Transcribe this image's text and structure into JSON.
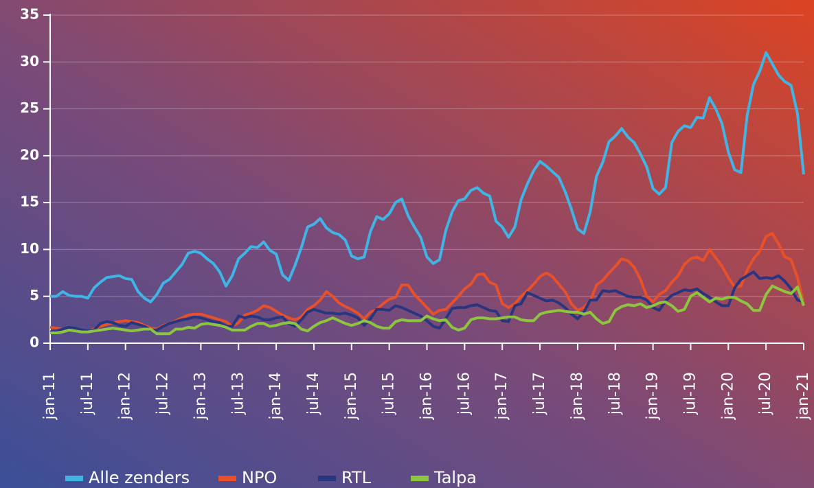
{
  "chart_data": {
    "type": "line",
    "categories": [
      "jan-11",
      null,
      null,
      null,
      null,
      null,
      "jul-11",
      null,
      null,
      null,
      null,
      null,
      "jan-12",
      null,
      null,
      null,
      null,
      null,
      "jul-12",
      null,
      null,
      null,
      null,
      null,
      "jan-13",
      null,
      null,
      null,
      null,
      null,
      "jul-13",
      null,
      null,
      null,
      null,
      null,
      "jan-14",
      null,
      null,
      null,
      null,
      null,
      "jul-14",
      null,
      null,
      null,
      null,
      null,
      "jan-15",
      null,
      null,
      null,
      null,
      null,
      "jul-15",
      null,
      null,
      null,
      null,
      null,
      "jan-16",
      null,
      null,
      null,
      null,
      null,
      "jul-16",
      null,
      null,
      null,
      null,
      null,
      "jan-17",
      null,
      null,
      null,
      null,
      null,
      "jul-17",
      null,
      null,
      null,
      null,
      null,
      "jan-18",
      null,
      null,
      null,
      null,
      null,
      "jul-18",
      null,
      null,
      null,
      null,
      null,
      "jan-19",
      null,
      null,
      null,
      null,
      null,
      "jul-19",
      null,
      null,
      null,
      null,
      null,
      "jan-20",
      null,
      null,
      null,
      null,
      null,
      "jul-20",
      null,
      null,
      null,
      null,
      null,
      "jan-21"
    ],
    "series": [
      {
        "name": "Alle zenders",
        "color": "#3fb4e5",
        "values": [
          5,
          5,
          5.5,
          5.1,
          5,
          5,
          4.8,
          5.9,
          6.5,
          7,
          7.1,
          7.2,
          6.9,
          6.8,
          5.5,
          4.8,
          4.4,
          5.2,
          6.4,
          6.8,
          7.6,
          8.4,
          9.6,
          9.8,
          9.6,
          9,
          8.5,
          7.6,
          6.1,
          7.2,
          9,
          9.6,
          10.3,
          10.2,
          10.8,
          9.9,
          9.5,
          7.3,
          6.7,
          8.3,
          10.2,
          12.4,
          12.7,
          13.3,
          12.3,
          11.8,
          11.6,
          11,
          9.3,
          9,
          9.2,
          11.9,
          13.5,
          13.2,
          13.8,
          15,
          15.4,
          13.6,
          12.4,
          11.3,
          9.2,
          8.5,
          8.9,
          12,
          14,
          15.2,
          15.4,
          16.3,
          16.6,
          16,
          15.7,
          13,
          12.4,
          11.3,
          12.4,
          15.3,
          17,
          18.4,
          19.4,
          18.9,
          18.3,
          17.7,
          16.2,
          14.3,
          12.2,
          11.7,
          14,
          17.8,
          19.3,
          21.5,
          22.1,
          22.9,
          22,
          21.4,
          20.2,
          18.8,
          16.5,
          15.9,
          16.6,
          21.4,
          22.6,
          23.2,
          23,
          24.1,
          24,
          26.2,
          25,
          23.4,
          20.4,
          18.5,
          18.2,
          24.3,
          27.6,
          29,
          31,
          29.8,
          28.6,
          27.9,
          27.5,
          24.5,
          18
        ]
      },
      {
        "name": "NPO",
        "color": "#e8502a",
        "values": [
          1.7,
          1.6,
          1.5,
          1.5,
          1.4,
          1.3,
          1.3,
          1.5,
          1.8,
          2,
          2.2,
          2.3,
          2.4,
          2.3,
          2.2,
          1.9,
          1.6,
          1.5,
          1.9,
          2.1,
          2.4,
          2.7,
          3,
          3.1,
          3.1,
          2.9,
          2.7,
          2.5,
          2.3,
          1.8,
          2.2,
          3,
          3.2,
          3.5,
          4,
          3.8,
          3.4,
          3,
          2.7,
          2.5,
          2.8,
          3.6,
          4,
          4.6,
          5.5,
          5,
          4.3,
          3.9,
          3.6,
          3.2,
          2.6,
          3.3,
          3.6,
          4.2,
          4.7,
          4.9,
          6.2,
          6.2,
          5.2,
          4.5,
          3.8,
          3.1,
          3.5,
          3.6,
          4.3,
          5,
          5.8,
          6.3,
          7.3,
          7.4,
          6.5,
          6.2,
          4.2,
          3.8,
          4.2,
          5,
          5.6,
          6.3,
          7.1,
          7.5,
          7.1,
          6.3,
          5.5,
          4.2,
          3.5,
          3.8,
          4.5,
          6.2,
          6.7,
          7.5,
          8.2,
          9,
          8.8,
          8.1,
          6.8,
          5,
          4.4,
          5.2,
          5.6,
          6.5,
          7.2,
          8.4,
          9,
          9.2,
          8.8,
          10,
          9.1,
          8.2,
          7,
          6,
          6.1,
          7.8,
          9,
          9.8,
          11.4,
          11.7,
          10.6,
          9.2,
          8.9,
          7,
          4.3
        ]
      },
      {
        "name": "RTL",
        "color": "#2a3580",
        "values": [
          1.2,
          1.3,
          1.5,
          1.7,
          1.6,
          1.4,
          1.3,
          1.4,
          2.1,
          2.3,
          2.2,
          1.9,
          1.8,
          2.2,
          2,
          1.8,
          1.4,
          1.4,
          1.8,
          2.1,
          2.3,
          2.5,
          2.6,
          2.8,
          2.7,
          2.5,
          2.3,
          2.2,
          1.8,
          1.8,
          2.9,
          2.7,
          2.9,
          2.8,
          2.5,
          2.5,
          2.7,
          2.8,
          2.1,
          1.8,
          2.5,
          3.3,
          3.6,
          3.4,
          3.2,
          3.2,
          3.1,
          3.2,
          3,
          2.7,
          1.9,
          2.6,
          3.6,
          3.6,
          3.5,
          4,
          3.8,
          3.5,
          3.2,
          2.9,
          2.4,
          1.8,
          1.6,
          2.6,
          3.7,
          3.8,
          3.8,
          4,
          4.1,
          3.8,
          3.5,
          3.4,
          2.4,
          2.3,
          4,
          4.2,
          5.4,
          5.1,
          4.8,
          4.5,
          4.6,
          4.3,
          3.8,
          3.1,
          2.6,
          3.3,
          4.6,
          4.6,
          5.6,
          5.5,
          5.6,
          5.3,
          5,
          4.9,
          4.9,
          4.6,
          3.8,
          3.5,
          4.5,
          5.1,
          5.4,
          5.7,
          5.6,
          5.8,
          5.3,
          4.9,
          4.4,
          4,
          4,
          5.9,
          6.8,
          7.2,
          7.6,
          6.9,
          7,
          6.9,
          7.2,
          6.6,
          5.8,
          4.6,
          4.4
        ]
      },
      {
        "name": "Talpa",
        "color": "#8cc63f",
        "values": [
          1.1,
          1.1,
          1.2,
          1.4,
          1.3,
          1.2,
          1.2,
          1.3,
          1.4,
          1.5,
          1.6,
          1.5,
          1.4,
          1.3,
          1.4,
          1.5,
          1.5,
          1,
          1,
          1,
          1.5,
          1.5,
          1.7,
          1.6,
          2,
          2.1,
          2,
          1.9,
          1.7,
          1.4,
          1.4,
          1.4,
          1.8,
          2.1,
          2.1,
          1.8,
          1.9,
          2.1,
          2.2,
          2.1,
          1.5,
          1.3,
          1.8,
          2.2,
          2.4,
          2.7,
          2.4,
          2.1,
          1.9,
          2.1,
          2.4,
          2.2,
          1.8,
          1.6,
          1.6,
          2.3,
          2.5,
          2.4,
          2.4,
          2.4,
          2.9,
          2.6,
          2.4,
          2.5,
          1.7,
          1.4,
          1.6,
          2.5,
          2.7,
          2.7,
          2.6,
          2.6,
          2.7,
          2.8,
          2.8,
          2.5,
          2.4,
          2.4,
          3.1,
          3.3,
          3.4,
          3.5,
          3.4,
          3.3,
          3.3,
          3.1,
          3.3,
          2.6,
          2.1,
          2.3,
          3.5,
          3.9,
          4.1,
          4,
          4.2,
          3.8,
          4,
          4.3,
          4.4,
          4,
          3.4,
          3.6,
          5,
          5.4,
          4.9,
          4.4,
          4.8,
          4.7,
          4.9,
          4.9,
          4.5,
          4.2,
          3.5,
          3.5,
          5.2,
          6.1,
          5.8,
          5.5,
          5.3,
          6,
          4
        ]
      }
    ],
    "ylim": [
      0,
      35
    ],
    "yticks": [
      0,
      5,
      10,
      15,
      20,
      25,
      30,
      35
    ],
    "grid": true,
    "legend": "bottom"
  }
}
